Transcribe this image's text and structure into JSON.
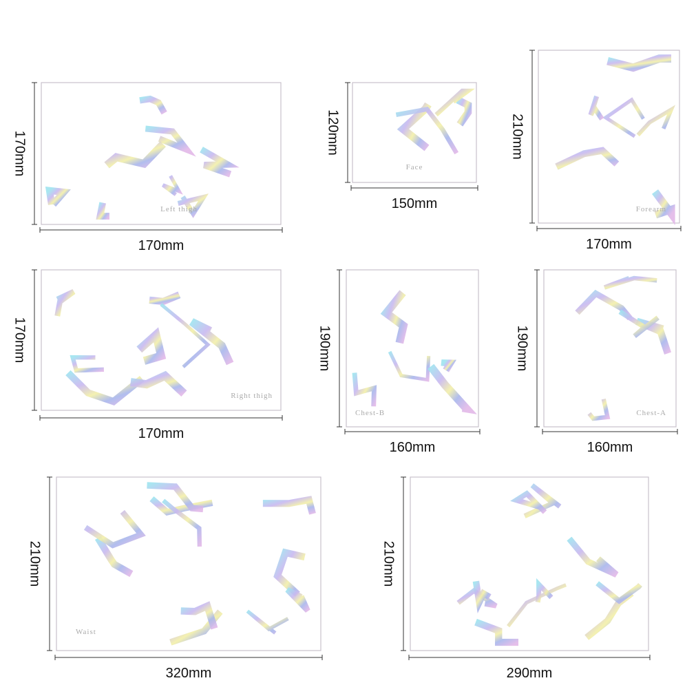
{
  "panels": [
    {
      "label": "Left thigh",
      "width": "170mm",
      "height": "170mm"
    },
    {
      "label": "Face",
      "width": "150mm",
      "height": "120mm"
    },
    {
      "label": "Forearm",
      "width": "170mm",
      "height": "210mm"
    },
    {
      "label": "Right thigh",
      "width": "170mm",
      "height": "170mm"
    },
    {
      "label": "Chest-B",
      "width": "160mm",
      "height": "190mm"
    },
    {
      "label": "Chest-A",
      "width": "160mm",
      "height": "190mm"
    },
    {
      "label": "Waist",
      "width": "320mm",
      "height": "210mm"
    },
    {
      "width": "290mm",
      "height": "210mm"
    }
  ]
}
